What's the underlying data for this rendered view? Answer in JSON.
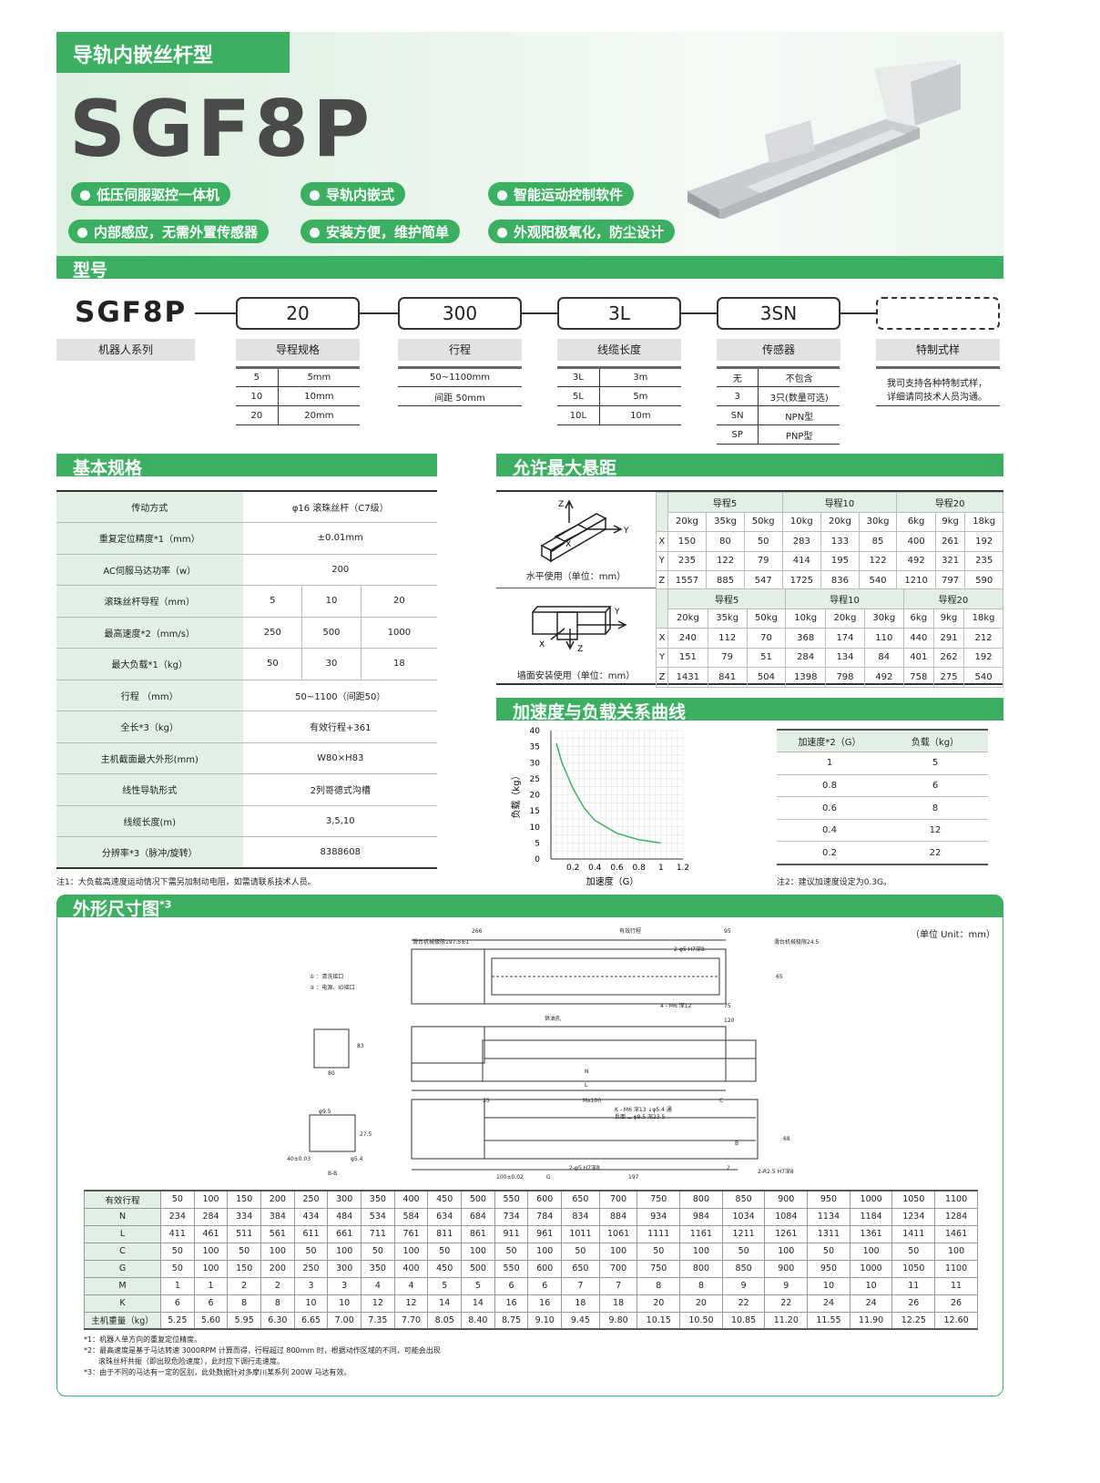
{
  "header": {
    "category": "导轨内嵌丝杆型",
    "model": "SGF8P",
    "features": [
      "低压伺服驱控一体机",
      "导轨内嵌式",
      "智能运动控制软件",
      "内部感应，无需外置传感器",
      "安装方便，维护简单",
      "外观阳极氧化，防尘设计"
    ]
  },
  "model_section": {
    "title": "型号",
    "series": "SGF8P",
    "codes": [
      "20",
      "300",
      "3L",
      "3SN",
      ""
    ],
    "labels": [
      "机器人系列",
      "导程规格",
      "行程",
      "线缆长度",
      "传感器",
      "特制式样"
    ],
    "lead": [
      [
        "5",
        "5mm"
      ],
      [
        "10",
        "10mm"
      ],
      [
        "20",
        "20mm"
      ]
    ],
    "stroke": [
      "50~1100mm",
      "间距 50mm"
    ],
    "cable": [
      [
        "3L",
        "3m"
      ],
      [
        "5L",
        "5m"
      ],
      [
        "10L",
        "10m"
      ]
    ],
    "sensor": [
      [
        "无",
        "不包含"
      ],
      [
        "3",
        "3只(数量可选)"
      ],
      [
        "SN",
        "NPN型"
      ],
      [
        "SP",
        "PNP型"
      ]
    ],
    "custom": "我司支持各种特制式样，详细请同技术人员沟通。"
  },
  "spec": {
    "title": "基本规格",
    "rows": [
      [
        "传动方式",
        "φ16 滚珠丝杆（C7级）"
      ],
      [
        "重复定位精度*1（mm）",
        "±0.01mm"
      ],
      [
        "AC伺服马达功率（w）",
        "200"
      ],
      [
        "滚珠丝杆导程（mm）",
        "5",
        "10",
        "20"
      ],
      [
        "最高速度*2（mm/s）",
        "250",
        "500",
        "1000"
      ],
      [
        "最大负载*1（kg）",
        "50",
        "30",
        "18"
      ],
      [
        "行程 （mm）",
        "50~1100（间距50）"
      ],
      [
        "全长*3（kg）",
        "有效行程+361"
      ],
      [
        "主机截面最大外形(mm)",
        "W80×H83"
      ],
      [
        "线性导轨形式",
        "2列哥德式沟槽"
      ],
      [
        "线缆长度(m)",
        "3,5,10"
      ],
      [
        "分辨率*3（脉冲/旋转）",
        "8388608"
      ]
    ],
    "note": "注1：大负载高速度运动情况下需另加制动电阻，如需请联系技术人员。"
  },
  "overhang": {
    "title": "允许最大悬距",
    "leads": [
      "导程5",
      "导程10",
      "导程20"
    ],
    "loads": [
      "20kg",
      "35kg",
      "50kg",
      "10kg",
      "20kg",
      "30kg",
      "6kg",
      "9kg",
      "18kg"
    ],
    "horizontal": {
      "label": "水平使用（单位：mm）",
      "rows": [
        [
          "X",
          "150",
          "80",
          "50",
          "283",
          "133",
          "85",
          "400",
          "261",
          "192"
        ],
        [
          "Y",
          "235",
          "122",
          "79",
          "414",
          "195",
          "122",
          "492",
          "321",
          "235"
        ],
        [
          "Z",
          "1557",
          "885",
          "547",
          "1725",
          "836",
          "540",
          "1210",
          "797",
          "590"
        ]
      ]
    },
    "wall": {
      "label": "墙面安装使用（单位：mm）",
      "rows": [
        [
          "X",
          "240",
          "112",
          "70",
          "368",
          "174",
          "110",
          "440",
          "291",
          "212"
        ],
        [
          "Y",
          "151",
          "79",
          "51",
          "284",
          "134",
          "84",
          "401",
          "262",
          "192"
        ],
        [
          "Z",
          "1431",
          "841",
          "504",
          "1398",
          "798",
          "492",
          "758",
          "275",
          "540"
        ]
      ]
    }
  },
  "accel": {
    "title": "加速度与负载关系曲线",
    "table_header": [
      "加速度*2（G）",
      "负载（kg）"
    ],
    "table": [
      [
        "1",
        "5"
      ],
      [
        "0.8",
        "6"
      ],
      [
        "0.6",
        "8"
      ],
      [
        "0.4",
        "12"
      ],
      [
        "0.2",
        "22"
      ]
    ],
    "note": "注2：建议加速度设定为0.3G。"
  },
  "chart_data": {
    "type": "line",
    "xlabel": "加速度（G）",
    "ylabel": "负载（kg）",
    "xlim": [
      0,
      1.2
    ],
    "ylim": [
      0,
      40
    ],
    "xticks": [
      "0.2",
      "0.4",
      "0.6",
      "0.8",
      "1",
      "1.2"
    ],
    "yticks": [
      "0",
      "5",
      "10",
      "15",
      "20",
      "25",
      "30",
      "35",
      "40"
    ],
    "grid": true,
    "color": "#3cb061",
    "x": [
      0.05,
      0.1,
      0.2,
      0.3,
      0.4,
      0.6,
      0.8,
      1.0
    ],
    "y": [
      36,
      30,
      22,
      16,
      12,
      8,
      6,
      5
    ]
  },
  "dims": {
    "title": "外形尺寸图",
    "title_sup": "*3",
    "unit": "（单位 Unit：mm）",
    "drawing_labels": [
      "266",
      "有效行程",
      "95",
      "滑台机械极限197.5±1",
      "滑台机械极限24.5±1",
      "2-φ5 H7深8",
      "4 - M6 深12",
      "75",
      "65",
      "120",
      "供油孔",
      "N",
      "L",
      "① ：清洗接口",
      "② ：电源、IO接口",
      "83",
      "80",
      "φ9.5",
      "27.5",
      "40±0.03",
      "φ5.4",
      "B-B",
      "35",
      "Mx100",
      "C",
      "K - M6 深13 ↓φ5.4 通",
      "反面 ⌴ φ9.5 深23.5",
      "2-φ5 H7深8",
      "2-R2.5 H7深8",
      "197",
      "100±0.02",
      "G",
      "2",
      "B",
      "68"
    ],
    "table": [
      [
        "有效行程",
        "50",
        "100",
        "150",
        "200",
        "250",
        "300",
        "350",
        "400",
        "450",
        "500",
        "550",
        "600",
        "650",
        "700",
        "750",
        "800",
        "850",
        "900",
        "950",
        "1000",
        "1050",
        "1100"
      ],
      [
        "N",
        "234",
        "284",
        "334",
        "384",
        "434",
        "484",
        "534",
        "584",
        "634",
        "684",
        "734",
        "784",
        "834",
        "884",
        "934",
        "984",
        "1034",
        "1084",
        "1134",
        "1184",
        "1234",
        "1284"
      ],
      [
        "L",
        "411",
        "461",
        "511",
        "561",
        "611",
        "661",
        "711",
        "761",
        "811",
        "861",
        "911",
        "961",
        "1011",
        "1061",
        "1111",
        "1161",
        "1211",
        "1261",
        "1311",
        "1361",
        "1411",
        "1461"
      ],
      [
        "C",
        "50",
        "100",
        "50",
        "100",
        "50",
        "100",
        "50",
        "100",
        "50",
        "100",
        "50",
        "100",
        "50",
        "100",
        "50",
        "100",
        "50",
        "100",
        "50",
        "100",
        "50",
        "100"
      ],
      [
        "G",
        "50",
        "100",
        "150",
        "200",
        "250",
        "300",
        "350",
        "400",
        "450",
        "500",
        "550",
        "600",
        "650",
        "700",
        "750",
        "800",
        "850",
        "900",
        "950",
        "1000",
        "1050",
        "1100"
      ],
      [
        "M",
        "1",
        "1",
        "2",
        "2",
        "3",
        "3",
        "4",
        "4",
        "5",
        "5",
        "6",
        "6",
        "7",
        "7",
        "8",
        "8",
        "9",
        "9",
        "10",
        "10",
        "11",
        "11"
      ],
      [
        "K",
        "6",
        "6",
        "8",
        "8",
        "10",
        "10",
        "12",
        "12",
        "14",
        "14",
        "16",
        "16",
        "18",
        "18",
        "20",
        "20",
        "22",
        "22",
        "24",
        "24",
        "26",
        "26"
      ],
      [
        "主机重量（kg）",
        "5.25",
        "5.60",
        "5.95",
        "6.30",
        "6.65",
        "7.00",
        "7.35",
        "7.70",
        "8.05",
        "8.40",
        "8.75",
        "9.10",
        "9.45",
        "9.80",
        "10.15",
        "10.50",
        "10.85",
        "11.20",
        "11.55",
        "11.90",
        "12.25",
        "12.60"
      ]
    ],
    "footnotes": [
      "*1：机器人单方向的重复定位精度。",
      "*2：最高速度是基于马达转速 3000RPM 计算而得，行程超过 800mm 时，根据动作区域的不同，可能会出现",
      "　　滚珠丝杆共振（即出现危险速度），此时应下调行走速度。",
      "*3：由于不同的马达有一定的区别，此处数据针对多摩川某系列 200W 马达有效。"
    ]
  },
  "colors": {
    "accent": "#3cb061",
    "header_cell": "#e1efe4"
  }
}
